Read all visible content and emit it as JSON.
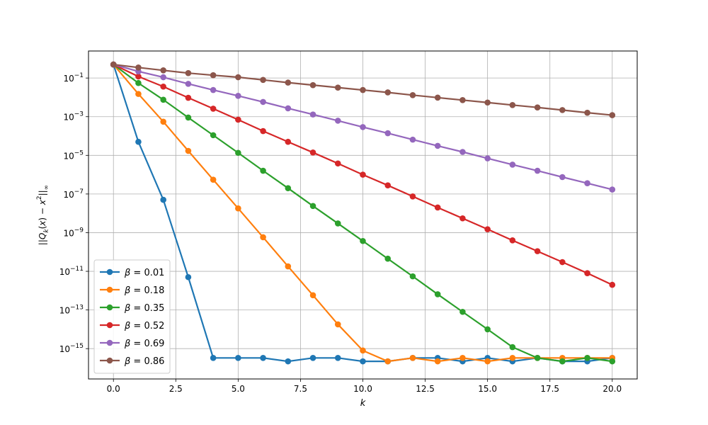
{
  "chart_data": {
    "type": "line",
    "title": "",
    "xlabel": "k",
    "ylabel": "||Q_k(x) − x^2||_∞",
    "x": [
      0,
      1,
      2,
      3,
      4,
      5,
      6,
      7,
      8,
      9,
      10,
      11,
      12,
      13,
      14,
      15,
      16,
      17,
      18,
      19,
      20
    ],
    "xlim": [
      -1,
      21
    ],
    "xticks": [
      0.0,
      2.5,
      5.0,
      7.5,
      10.0,
      12.5,
      15.0,
      17.5,
      20.0
    ],
    "xtick_labels": [
      "0.0",
      "2.5",
      "5.0",
      "7.5",
      "10.0",
      "12.5",
      "15.0",
      "17.5",
      "20.0"
    ],
    "yscale": "log",
    "ylim": [
      2.7e-17,
      2.5
    ],
    "ytick_base": "10",
    "ytick_exponents": [
      "-1",
      "-3",
      "-5",
      "-7",
      "-9",
      "-11",
      "-13",
      "-15"
    ],
    "grid": true,
    "legend_position": "lower-left",
    "series": [
      {
        "name": "β = 0.01",
        "beta": "0.01",
        "color": "#1f77b4",
        "values": [
          0.5,
          5e-05,
          5e-08,
          5e-12,
          3.3e-16,
          3.3e-16,
          3.3e-16,
          2.2e-16,
          3.3e-16,
          3.3e-16,
          2.2e-16,
          2.2e-16,
          3.3e-16,
          3.3e-16,
          2.2e-16,
          3.3e-16,
          2.2e-16,
          3.3e-16,
          2.2e-16,
          2.2e-16,
          3.3e-16
        ]
      },
      {
        "name": "β = 0.18",
        "beta": "0.18",
        "color": "#ff7f0e",
        "values": [
          0.5,
          0.015,
          0.00055,
          1.7e-05,
          5.5e-07,
          1.8e-08,
          5.8e-10,
          1.8e-11,
          5.8e-13,
          1.8e-14,
          8e-16,
          2.2e-16,
          3.3e-16,
          2.2e-16,
          3.3e-16,
          2.2e-16,
          3.3e-16,
          3.3e-16,
          3.3e-16,
          3.3e-16,
          3.3e-16
        ]
      },
      {
        "name": "β = 0.35",
        "beta": "0.35",
        "color": "#2ca02c",
        "values": [
          0.5,
          0.055,
          0.0075,
          0.0009,
          0.00011,
          1.35e-05,
          1.6e-06,
          2e-07,
          2.4e-08,
          3e-09,
          3.7e-10,
          4.5e-11,
          5.5e-12,
          6.5e-13,
          8e-14,
          1e-14,
          1.2e-15,
          3.3e-16,
          2.2e-16,
          3.3e-16,
          2.2e-16
        ]
      },
      {
        "name": "β = 0.52",
        "beta": "0.52",
        "color": "#d62728",
        "values": [
          0.5,
          0.12,
          0.036,
          0.0095,
          0.0026,
          0.0007,
          0.00018,
          5e-05,
          1.4e-05,
          3.8e-06,
          1e-06,
          2.8e-07,
          7.5e-08,
          2e-08,
          5.5e-09,
          1.5e-09,
          4e-10,
          1.1e-10,
          3e-11,
          8e-12,
          2e-12
        ]
      },
      {
        "name": "β = 0.69",
        "beta": "0.69",
        "color": "#9467bd",
        "values": [
          0.5,
          0.22,
          0.11,
          0.05,
          0.024,
          0.012,
          0.0058,
          0.0027,
          0.0013,
          0.00062,
          0.00029,
          0.00014,
          6.5e-05,
          3.1e-05,
          1.5e-05,
          7e-06,
          3.3e-06,
          1.6e-06,
          7.5e-07,
          3.6e-07,
          1.7e-07
        ]
      },
      {
        "name": "β = 0.86",
        "beta": "0.86",
        "color": "#8c564b",
        "values": [
          0.5,
          0.35,
          0.25,
          0.18,
          0.14,
          0.11,
          0.08,
          0.058,
          0.043,
          0.032,
          0.024,
          0.018,
          0.013,
          0.0097,
          0.0072,
          0.0054,
          0.004,
          0.003,
          0.0022,
          0.0016,
          0.0012
        ]
      }
    ]
  }
}
